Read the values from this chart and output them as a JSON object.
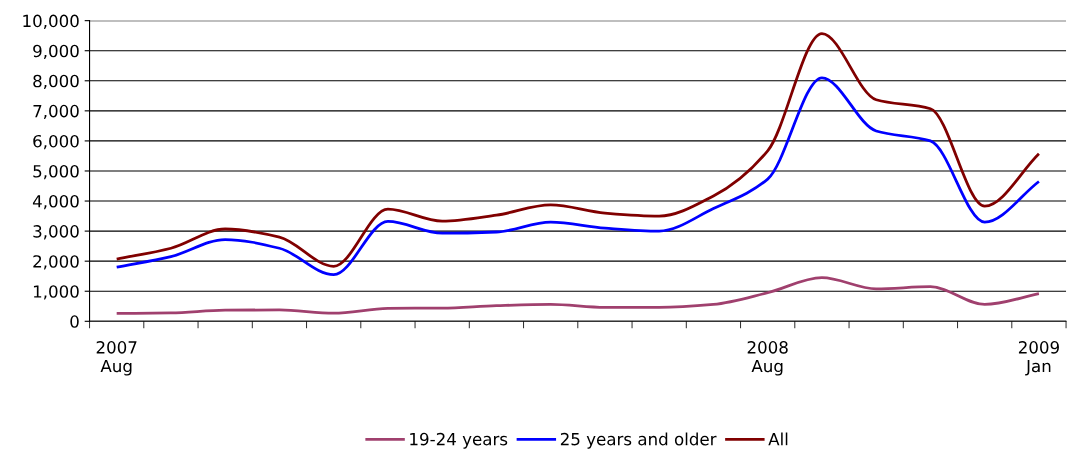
{
  "chart_data": {
    "type": "line",
    "categories": [
      "2007\nAug",
      null,
      null,
      null,
      null,
      null,
      null,
      null,
      null,
      null,
      null,
      null,
      "2008\nAug",
      null,
      null,
      null,
      null,
      "2009\nJan"
    ],
    "series": [
      {
        "name": "19-24 years",
        "color": "#a0406e",
        "values": [
          260,
          280,
          370,
          380,
          270,
          430,
          440,
          520,
          560,
          460,
          460,
          560,
          950,
          1450,
          1080,
          1150,
          560,
          920
        ]
      },
      {
        "name": "25 years and older",
        "color": "#0000ff",
        "values": [
          1800,
          2150,
          2720,
          2430,
          1550,
          3320,
          2930,
          2970,
          3300,
          3100,
          3000,
          3750,
          4730,
          8100,
          6330,
          6000,
          3300,
          4650
        ]
      },
      {
        "name": "All",
        "color": "#800000",
        "values": [
          2070,
          2430,
          3070,
          2800,
          1830,
          3730,
          3330,
          3530,
          3870,
          3600,
          3500,
          4170,
          5670,
          9570,
          7370,
          7070,
          3830,
          5570
        ]
      }
    ],
    "ylim": [
      0,
      10000
    ],
    "yticks": [
      0,
      {
        "value": 1000,
        "label": "1,000"
      },
      {
        "value": 2000,
        "label": "2,000"
      },
      {
        "value": 3000,
        "label": "3,000"
      },
      {
        "value": 4000,
        "label": "4,000"
      },
      {
        "value": 5000,
        "label": "5,000"
      },
      {
        "value": 6000,
        "label": "6,000"
      },
      {
        "value": 7000,
        "label": "7,000"
      },
      {
        "value": 8000,
        "label": "8,000"
      },
      {
        "value": 9000,
        "label": "9,000"
      },
      {
        "value": 10000,
        "label": "10,000"
      }
    ],
    "grid": "y",
    "legend": "bottom",
    "marker": "none",
    "line_style": "solid"
  }
}
